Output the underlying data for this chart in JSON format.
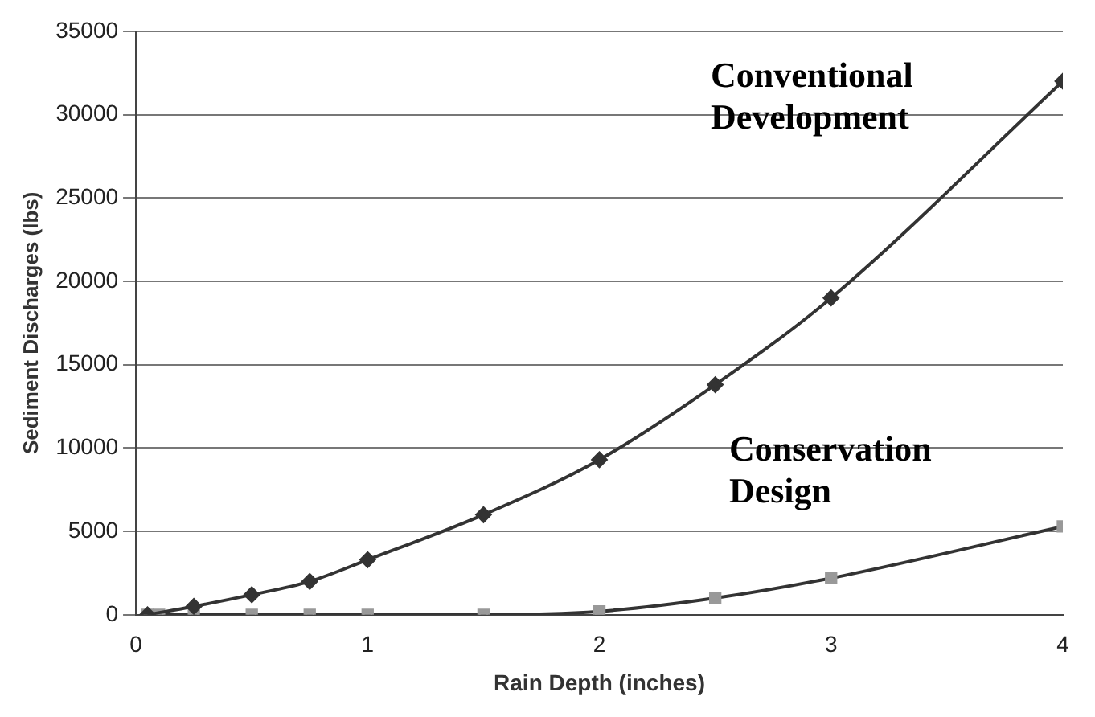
{
  "chart_data": {
    "type": "line",
    "xlabel": "Rain Depth (inches)",
    "ylabel": "Sediment Discharges (lbs)",
    "xlim": [
      0,
      4
    ],
    "xticks": [
      0,
      1,
      2,
      3,
      4
    ],
    "ylim": [
      0,
      35000
    ],
    "yticks": [
      0,
      5000,
      10000,
      15000,
      20000,
      25000,
      30000,
      35000
    ],
    "grid": "y",
    "legend": false,
    "series": [
      {
        "name": "Conventional Development",
        "color": "#333333",
        "marker": "diamond",
        "x": [
          0.05,
          0.25,
          0.5,
          0.75,
          1,
          1.5,
          2,
          2.5,
          3,
          4
        ],
        "values": [
          0,
          500,
          1200,
          2000,
          3300,
          6000,
          9300,
          13800,
          19000,
          32000
        ]
      },
      {
        "name": "Conservation Design",
        "color": "#999999",
        "marker": "square",
        "x": [
          0.05,
          0.1,
          0.25,
          0.5,
          0.75,
          1,
          1.5,
          2,
          2.5,
          3,
          4
        ],
        "values": [
          0,
          0,
          0,
          0,
          0,
          0,
          0,
          200,
          1000,
          2200,
          5300
        ]
      }
    ]
  }
}
